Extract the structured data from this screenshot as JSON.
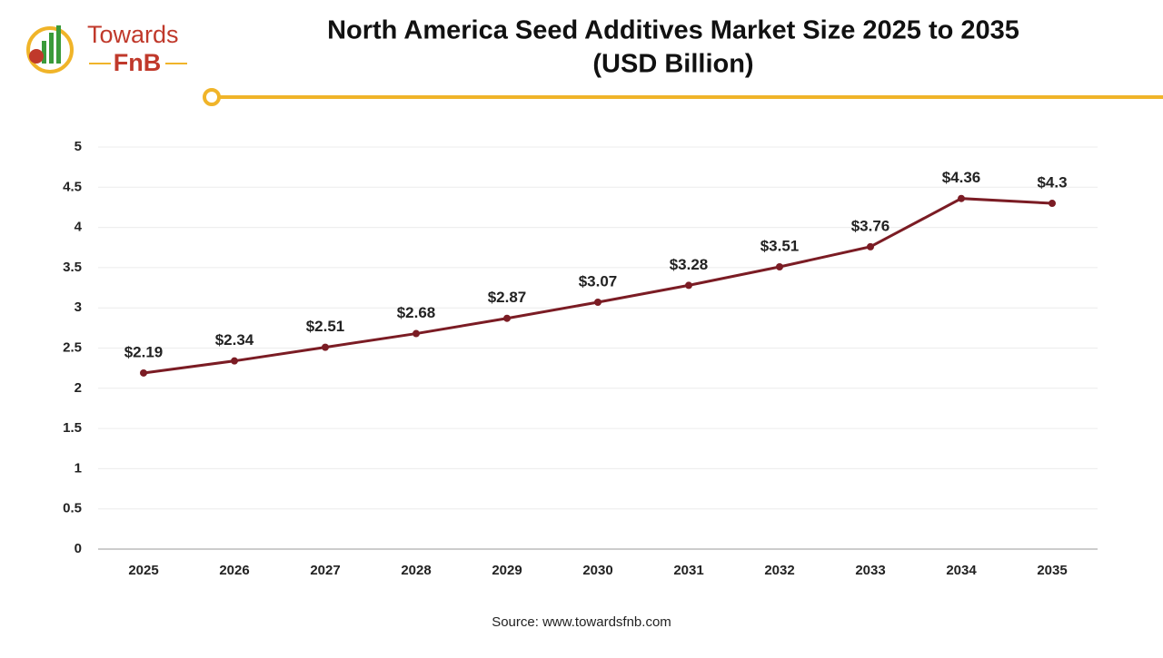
{
  "logo": {
    "line1": "Towards",
    "line2": "FnB"
  },
  "chart_data": {
    "type": "line",
    "title": "North America Seed Additives Market Size 2025 to 2035",
    "subtitle": "(USD Billion)",
    "source": "Source: www.towardsfnb.com",
    "categories": [
      "2025",
      "2026",
      "2027",
      "2028",
      "2029",
      "2030",
      "2031",
      "2032",
      "2033",
      "2034",
      "2035"
    ],
    "values": [
      2.19,
      2.34,
      2.51,
      2.68,
      2.87,
      3.07,
      3.28,
      3.51,
      3.76,
      4.36,
      4.3
    ],
    "value_labels": [
      "$2.19",
      "$2.34",
      "$2.51",
      "$2.68",
      "$2.87",
      "$3.07",
      "$3.28",
      "$3.51",
      "$3.76",
      "$4.36",
      "$4.3"
    ],
    "color": "#7b1c24",
    "ylim": [
      0,
      5
    ],
    "yticks": [
      0,
      0.5,
      1,
      1.5,
      2,
      2.5,
      3,
      3.5,
      4,
      4.5,
      5
    ],
    "grid": true
  }
}
